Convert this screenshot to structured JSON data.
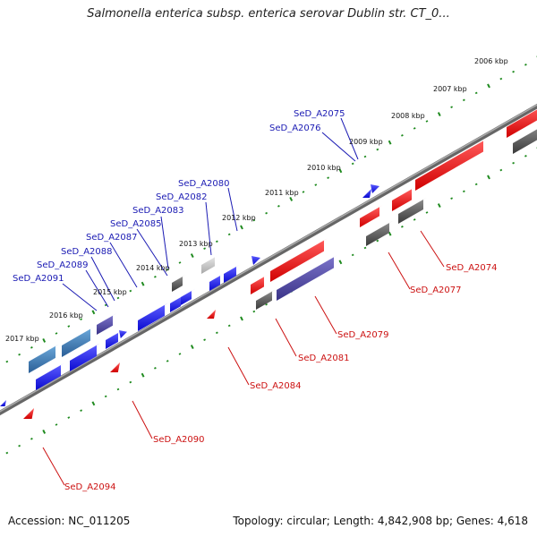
{
  "title": "Salmonella enterica subsp. enterica serovar Dublin str. CT_0...",
  "footer": {
    "accession": "Accession: NC_011205",
    "topology": "Topology: circular; Length: 4,842,908 bp; Genes: 4,618"
  },
  "kbp_labels": [
    "2006 kbp",
    "2007 kbp",
    "2008 kbp",
    "2009 kbp",
    "2010 kbp",
    "2011 kbp",
    "2012 kbp",
    "2013 kbp",
    "2014 kbp",
    "2015 kbp",
    "2016 kbp",
    "2017 kbp"
  ],
  "genes_top": [
    "SeD_A2075",
    "SeD_A2076",
    "SeD_A2080",
    "SeD_A2082",
    "SeD_A2083",
    "SeD_A2085",
    "SeD_A2087",
    "SeD_A2088",
    "SeD_A2089",
    "SeD_A2091"
  ],
  "genes_bottom": [
    "SeD_A2074",
    "SeD_A2077",
    "SeD_A2079",
    "SeD_A2081",
    "SeD_A2084",
    "SeD_A2090",
    "SeD_A2094"
  ],
  "colors": {
    "forward_gene": "#1a1aee",
    "reverse_gene": "#ee1111",
    "other_gene": "#555555",
    "backbone": "#777777",
    "tick": "#228822"
  }
}
